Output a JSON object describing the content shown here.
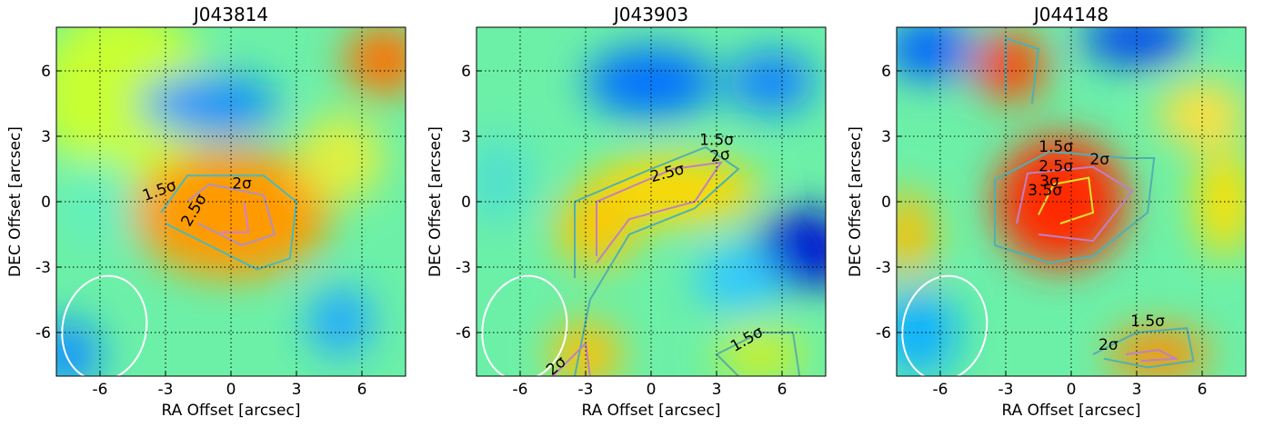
{
  "chart_data": [
    {
      "type": "heatmap",
      "title": "J043814",
      "xlabel": "RA Offset [arcsec]",
      "ylabel": "DEC Offset [arcsec]",
      "xlim": [
        -8,
        8
      ],
      "ylim": [
        -8,
        8
      ],
      "xticks": [
        -6,
        -3,
        0,
        3,
        6
      ],
      "yticks": [
        -6,
        -3,
        0,
        3,
        6
      ],
      "grid": true,
      "annotations": [
        "1.5σ",
        "2.5σ",
        "2σ"
      ]
    },
    {
      "type": "heatmap",
      "title": "J043903",
      "xlabel": "RA Offset [arcsec]",
      "ylabel": "DEC Offset [arcsec]",
      "xlim": [
        -8,
        8
      ],
      "ylim": [
        -8,
        8
      ],
      "xticks": [
        -6,
        -3,
        0,
        3,
        6
      ],
      "yticks": [
        -6,
        -3,
        0,
        3,
        6
      ],
      "grid": true,
      "annotations": [
        "1.5σ",
        "2σ",
        "2.5σ",
        "1.5σ",
        "2σ"
      ]
    },
    {
      "type": "heatmap",
      "title": "J044148",
      "xlabel": "RA Offset [arcsec]",
      "ylabel": "DEC Offset [arcsec]",
      "xlim": [
        -8,
        8
      ],
      "ylim": [
        -8,
        8
      ],
      "xticks": [
        -6,
        -3,
        0,
        3,
        6
      ],
      "yticks": [
        -6,
        -3,
        0,
        3,
        6
      ],
      "grid": true,
      "annotations": [
        "1.5σ",
        "2.5σ",
        "2σ",
        "3σ",
        "3.5σ",
        "1.5σ",
        "2σ"
      ]
    }
  ]
}
